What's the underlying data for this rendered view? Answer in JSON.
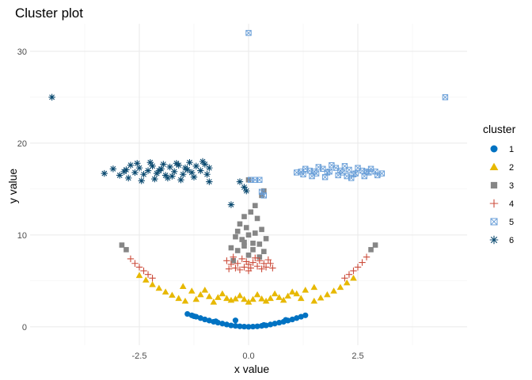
{
  "chart_data": {
    "type": "scatter",
    "title": "Cluster plot",
    "xlabel": "x value",
    "ylabel": "y value",
    "xlim": [
      -5.0,
      5.0
    ],
    "ylim": [
      -2.0,
      33.0
    ],
    "x_ticks": [
      -2.5,
      0.0,
      2.5
    ],
    "x_tick_labels": [
      "-2.5",
      "0.0",
      "2.5"
    ],
    "y_ticks": [
      0,
      10,
      20,
      30
    ],
    "y_tick_labels": [
      "0",
      "10",
      "20",
      "30"
    ],
    "grid": true,
    "legend": {
      "title": "cluster",
      "placement": "right",
      "entries": [
        "1",
        "2",
        "3",
        "4",
        "5",
        "6"
      ]
    },
    "series": [
      {
        "name": "1",
        "marker": "circle",
        "color": "#0072C2",
        "points": [
          [
            -1.4,
            1.4
          ],
          [
            -1.3,
            1.25
          ],
          [
            -1.2,
            1.1
          ],
          [
            -1.1,
            0.95
          ],
          [
            -1.0,
            0.8
          ],
          [
            -0.9,
            0.68
          ],
          [
            -0.8,
            0.55
          ],
          [
            -0.7,
            0.45
          ],
          [
            -0.6,
            0.35
          ],
          [
            -0.5,
            0.25
          ],
          [
            -0.4,
            0.15
          ],
          [
            -0.3,
            0.1
          ],
          [
            -0.2,
            0.05
          ],
          [
            -0.1,
            0.02
          ],
          [
            0.0,
            0.0
          ],
          [
            0.1,
            0.02
          ],
          [
            0.2,
            0.05
          ],
          [
            0.3,
            0.1
          ],
          [
            0.4,
            0.15
          ],
          [
            0.5,
            0.25
          ],
          [
            0.6,
            0.35
          ],
          [
            0.7,
            0.45
          ],
          [
            0.8,
            0.55
          ],
          [
            0.9,
            0.68
          ],
          [
            1.0,
            0.8
          ],
          [
            1.1,
            0.95
          ],
          [
            1.2,
            1.1
          ],
          [
            1.3,
            1.25
          ],
          [
            -0.3,
            0.7
          ],
          [
            -1.25,
            1.15
          ],
          [
            -0.75,
            0.6
          ],
          [
            0.35,
            0.2
          ],
          [
            0.85,
            0.75
          ]
        ]
      },
      {
        "name": "2",
        "marker": "triangle",
        "color": "#E7B800",
        "points": [
          [
            -2.5,
            5.6
          ],
          [
            -2.35,
            5.1
          ],
          [
            -2.2,
            4.6
          ],
          [
            -2.05,
            4.2
          ],
          [
            -1.9,
            3.8
          ],
          [
            -1.75,
            3.45
          ],
          [
            -1.6,
            3.1
          ],
          [
            -1.45,
            2.8
          ],
          [
            -1.5,
            4.4
          ],
          [
            -1.3,
            3.9
          ],
          [
            -1.1,
            3.5
          ],
          [
            -0.9,
            3.3
          ],
          [
            -0.7,
            3.2
          ],
          [
            -0.5,
            3.1
          ],
          [
            -0.3,
            3.05
          ],
          [
            -0.1,
            3.0
          ],
          [
            0.1,
            3.0
          ],
          [
            0.3,
            3.05
          ],
          [
            0.5,
            3.1
          ],
          [
            0.7,
            3.2
          ],
          [
            0.9,
            3.35
          ],
          [
            1.1,
            3.6
          ],
          [
            1.3,
            4.0
          ],
          [
            1.5,
            4.3
          ],
          [
            1.5,
            2.8
          ],
          [
            1.65,
            3.15
          ],
          [
            1.8,
            3.5
          ],
          [
            1.95,
            3.9
          ],
          [
            2.1,
            4.3
          ],
          [
            2.25,
            4.8
          ],
          [
            2.4,
            5.3
          ],
          [
            -1.2,
            3.0
          ],
          [
            -0.8,
            2.7
          ],
          [
            -0.4,
            2.9
          ],
          [
            0.0,
            2.7
          ],
          [
            0.4,
            2.8
          ],
          [
            0.8,
            2.9
          ],
          [
            1.2,
            3.1
          ],
          [
            -1.0,
            4.0
          ],
          [
            -0.6,
            3.6
          ],
          [
            0.2,
            3.5
          ],
          [
            0.6,
            3.6
          ],
          [
            1.0,
            3.8
          ],
          [
            -0.2,
            3.4
          ]
        ]
      },
      {
        "name": "3",
        "marker": "square",
        "color": "#868686",
        "points": [
          [
            -2.9,
            8.9
          ],
          [
            -2.8,
            8.4
          ],
          [
            2.9,
            8.9
          ],
          [
            2.8,
            8.4
          ],
          [
            -0.35,
            7.2
          ],
          [
            -0.25,
            8.3
          ],
          [
            -0.15,
            9.5
          ],
          [
            -0.05,
            10.8
          ],
          [
            0.05,
            12.5
          ],
          [
            0.15,
            10.2
          ],
          [
            0.25,
            9.0
          ],
          [
            0.35,
            8.2
          ],
          [
            -0.3,
            9.8
          ],
          [
            -0.1,
            8.8
          ],
          [
            0.1,
            9.1
          ],
          [
            0.3,
            10.6
          ],
          [
            0.0,
            7.8
          ],
          [
            -0.2,
            11.2
          ],
          [
            0.2,
            11.8
          ],
          [
            0.4,
            9.6
          ],
          [
            -0.4,
            8.6
          ],
          [
            0.0,
            10.0
          ],
          [
            -0.1,
            12.0
          ],
          [
            0.1,
            8.4
          ],
          [
            -0.25,
            10.4
          ],
          [
            0.25,
            7.6
          ],
          [
            0.3,
            14.3
          ],
          [
            0.35,
            14.8
          ],
          [
            0.0,
            16.0
          ],
          [
            -0.1,
            9.2
          ],
          [
            0.15,
            13.2
          ]
        ]
      },
      {
        "name": "4",
        "marker": "plus",
        "color": "#CC4C3B",
        "points": [
          [
            -2.7,
            7.4
          ],
          [
            -2.6,
            6.9
          ],
          [
            -2.5,
            6.5
          ],
          [
            -2.4,
            6.1
          ],
          [
            -2.3,
            5.7
          ],
          [
            -2.2,
            5.3
          ],
          [
            2.2,
            5.3
          ],
          [
            2.3,
            5.7
          ],
          [
            2.4,
            6.1
          ],
          [
            2.5,
            6.5
          ],
          [
            2.6,
            7.0
          ],
          [
            2.7,
            7.6
          ],
          [
            -0.5,
            7.2
          ],
          [
            -0.4,
            6.8
          ],
          [
            -0.3,
            6.4
          ],
          [
            -0.2,
            6.2
          ],
          [
            -0.1,
            6.5
          ],
          [
            0.0,
            6.8
          ],
          [
            0.1,
            7.0
          ],
          [
            0.2,
            6.6
          ],
          [
            0.3,
            6.3
          ],
          [
            0.4,
            6.5
          ],
          [
            0.5,
            6.9
          ],
          [
            -0.45,
            6.3
          ],
          [
            -0.15,
            7.4
          ],
          [
            0.15,
            7.5
          ],
          [
            0.45,
            7.3
          ],
          [
            -0.35,
            7.6
          ],
          [
            0.35,
            6.9
          ],
          [
            0.0,
            6.1
          ],
          [
            -0.25,
            6.9
          ],
          [
            0.25,
            7.2
          ],
          [
            0.05,
            6.4
          ],
          [
            -0.05,
            7.1
          ],
          [
            0.55,
            6.4
          ]
        ]
      },
      {
        "name": "5",
        "marker": "square-cross",
        "color": "#6A9FD8",
        "points": [
          [
            0.0,
            32.0
          ],
          [
            4.5,
            25.0
          ],
          [
            0.05,
            16.0
          ],
          [
            0.15,
            16.0
          ],
          [
            0.25,
            16.0
          ],
          [
            0.3,
            14.7
          ],
          [
            0.35,
            14.3
          ],
          [
            1.1,
            16.8
          ],
          [
            1.25,
            16.6
          ],
          [
            1.4,
            17.0
          ],
          [
            1.55,
            16.7
          ],
          [
            1.7,
            17.2
          ],
          [
            1.85,
            16.9
          ],
          [
            2.0,
            17.3
          ],
          [
            2.15,
            16.8
          ],
          [
            2.3,
            17.1
          ],
          [
            2.45,
            16.7
          ],
          [
            2.6,
            17.0
          ],
          [
            2.75,
            16.8
          ],
          [
            2.9,
            16.9
          ],
          [
            3.05,
            16.7
          ],
          [
            1.3,
            17.2
          ],
          [
            1.6,
            17.4
          ],
          [
            1.9,
            17.6
          ],
          [
            2.2,
            17.5
          ],
          [
            2.5,
            17.3
          ],
          [
            2.8,
            17.2
          ],
          [
            1.45,
            16.4
          ],
          [
            1.75,
            16.3
          ],
          [
            2.05,
            16.5
          ],
          [
            2.35,
            16.2
          ],
          [
            2.65,
            16.4
          ],
          [
            2.95,
            16.5
          ],
          [
            1.2,
            16.9
          ],
          [
            2.1,
            17.0
          ],
          [
            1.8,
            16.8
          ],
          [
            2.4,
            16.6
          ],
          [
            1.5,
            16.9
          ],
          [
            2.7,
            16.9
          ],
          [
            2.25,
            16.4
          ]
        ]
      },
      {
        "name": "6",
        "marker": "asterisk",
        "color": "#0B4A70",
        "points": [
          [
            -4.5,
            25.0
          ],
          [
            -3.3,
            16.7
          ],
          [
            -3.1,
            17.2
          ],
          [
            -2.95,
            16.5
          ],
          [
            -2.8,
            17.1
          ],
          [
            -2.7,
            17.6
          ],
          [
            -2.6,
            16.8
          ],
          [
            -2.5,
            17.3
          ],
          [
            -2.4,
            16.6
          ],
          [
            -2.3,
            17.0
          ],
          [
            -2.2,
            17.5
          ],
          [
            -2.1,
            16.7
          ],
          [
            -2.0,
            17.2
          ],
          [
            -1.9,
            16.5
          ],
          [
            -1.8,
            17.4
          ],
          [
            -1.7,
            16.9
          ],
          [
            -1.6,
            17.6
          ],
          [
            -1.5,
            16.6
          ],
          [
            -1.4,
            17.1
          ],
          [
            -1.3,
            16.8
          ],
          [
            -1.2,
            17.5
          ],
          [
            -1.1,
            17.0
          ],
          [
            -1.0,
            17.7
          ],
          [
            -0.95,
            16.6
          ],
          [
            -0.9,
            17.3
          ],
          [
            -2.75,
            16.2
          ],
          [
            -2.45,
            15.9
          ],
          [
            -2.15,
            16.1
          ],
          [
            -1.85,
            16.2
          ],
          [
            -1.55,
            16.0
          ],
          [
            -1.25,
            16.3
          ],
          [
            -0.9,
            15.8
          ],
          [
            -2.55,
            17.8
          ],
          [
            -2.25,
            17.9
          ],
          [
            -1.95,
            17.7
          ],
          [
            -1.65,
            17.8
          ],
          [
            -1.35,
            17.9
          ],
          [
            -1.05,
            18.0
          ],
          [
            -0.2,
            15.8
          ],
          [
            -0.1,
            15.2
          ],
          [
            -0.05,
            14.8
          ],
          [
            -0.4,
            13.3
          ],
          [
            -2.85,
            16.9
          ],
          [
            -1.75,
            16.4
          ],
          [
            -1.45,
            17.3
          ],
          [
            -2.05,
            17.0
          ]
        ]
      }
    ]
  }
}
